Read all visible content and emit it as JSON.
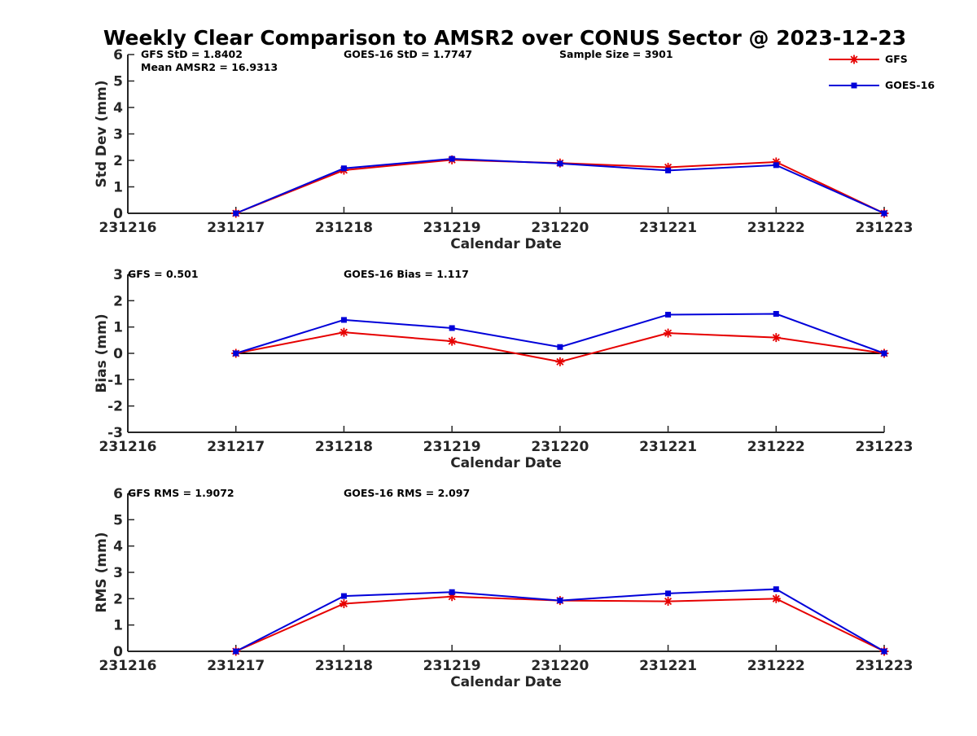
{
  "title": "Weekly Clear Comparison to AMSR2 over CONUS Sector @ 2023-12-23",
  "legend": [
    {
      "label": "GFS",
      "color": "#e60000",
      "marker": "asterisk"
    },
    {
      "label": "GOES-16",
      "color": "#0000d9",
      "marker": "square"
    }
  ],
  "chart_data": [
    {
      "type": "line",
      "title": "",
      "xlabel": "Calendar Date",
      "ylabel": "Std Dev (mm)",
      "categories": [
        "231216",
        "231217",
        "231218",
        "231219",
        "231220",
        "231221",
        "231222",
        "231223"
      ],
      "ylim": [
        0,
        6
      ],
      "yticks": [
        "0",
        "1",
        "2",
        "3",
        "4",
        "5",
        "6"
      ],
      "grid": false,
      "zero_line": false,
      "annotations": [
        "GFS StD = 1.8402",
        "Mean AMSR2 = 16.9313",
        "GOES-16 StD = 1.7747",
        "Sample Size = 3901"
      ],
      "series": [
        {
          "name": "GFS",
          "x": [
            "231217",
            "231218",
            "231219",
            "231220",
            "231221",
            "231222",
            "231223"
          ],
          "values": [
            0,
            1.63,
            2.02,
            1.9,
            1.74,
            1.94,
            0
          ]
        },
        {
          "name": "GOES-16",
          "x": [
            "231217",
            "231218",
            "231219",
            "231220",
            "231221",
            "231222",
            "231223"
          ],
          "values": [
            0,
            1.7,
            2.06,
            1.88,
            1.62,
            1.82,
            0
          ]
        }
      ]
    },
    {
      "type": "line",
      "title": "",
      "xlabel": "Calendar Date",
      "ylabel": "Bias (mm)",
      "categories": [
        "231216",
        "231217",
        "231218",
        "231219",
        "231220",
        "231221",
        "231222",
        "231223"
      ],
      "ylim": [
        -3,
        3
      ],
      "yticks": [
        "-3",
        "-2",
        "-1",
        "0",
        "1",
        "2",
        "3"
      ],
      "grid": false,
      "zero_line": true,
      "annotations": [
        "GFS = 0.501",
        "GOES-16 Bias  = 1.117"
      ],
      "series": [
        {
          "name": "GFS",
          "x": [
            "231217",
            "231218",
            "231219",
            "231220",
            "231221",
            "231222",
            "231223"
          ],
          "values": [
            0,
            0.8,
            0.46,
            -0.32,
            0.77,
            0.6,
            0
          ]
        },
        {
          "name": "GOES-16",
          "x": [
            "231217",
            "231218",
            "231219",
            "231220",
            "231221",
            "231222",
            "231223"
          ],
          "values": [
            0,
            1.27,
            0.96,
            0.24,
            1.47,
            1.5,
            0
          ]
        }
      ]
    },
    {
      "type": "line",
      "title": "",
      "xlabel": "Calendar Date",
      "ylabel": "RMS (mm)",
      "categories": [
        "231216",
        "231217",
        "231218",
        "231219",
        "231220",
        "231221",
        "231222",
        "231223"
      ],
      "ylim": [
        0,
        6
      ],
      "yticks": [
        "0",
        "1",
        "2",
        "3",
        "4",
        "5",
        "6"
      ],
      "grid": false,
      "zero_line": false,
      "annotations": [
        "GFS RMS = 1.9072",
        "GOES-16 RMS = 2.097"
      ],
      "series": [
        {
          "name": "GFS",
          "x": [
            "231217",
            "231218",
            "231219",
            "231220",
            "231221",
            "231222",
            "231223"
          ],
          "values": [
            0,
            1.81,
            2.08,
            1.93,
            1.9,
            2.0,
            0
          ]
        },
        {
          "name": "GOES-16",
          "x": [
            "231217",
            "231218",
            "231219",
            "231220",
            "231221",
            "231222",
            "231223"
          ],
          "values": [
            0,
            2.1,
            2.25,
            1.93,
            2.2,
            2.36,
            0
          ]
        }
      ]
    }
  ]
}
